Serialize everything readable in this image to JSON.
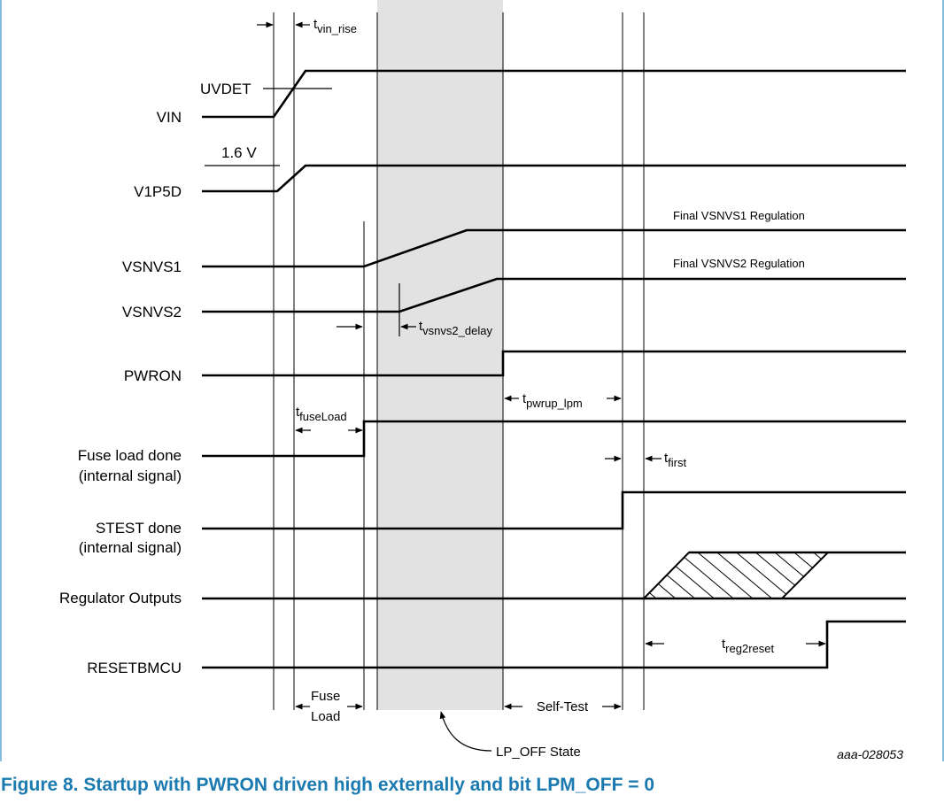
{
  "caption": "Figure 8.  Startup with PWRON driven high externally and bit LPM_OFF = 0",
  "figure_id": "aaa-028053",
  "signals": {
    "vin": "VIN",
    "v1p5d": "V1P5D",
    "vsnvs1": "VSNVS1",
    "vsnvs2": "VSNVS2",
    "pwron": "PWRON",
    "fuse_done": "Fuse load done",
    "fuse_done_sub": "(internal signal)",
    "stest_done": "STEST done",
    "stest_done_sub": "(internal signal)",
    "reg_outputs": "Regulator Outputs",
    "resetbmcu": "RESETBMCU"
  },
  "annotations": {
    "uvdet": "UVDET",
    "v16": "1.6 V",
    "vsnvs1_final": "Final VSNVS1 Regulation",
    "vsnvs2_final": "Final VSNVS2 Regulation",
    "fuse_load_1": "Fuse",
    "fuse_load_2": "Load",
    "self_test": "Self-Test",
    "lp_off_state": "LP_OFF State"
  },
  "timing": {
    "vin_rise_t": "t",
    "vin_rise_sub": "vin_rise",
    "vsnvs2_delay_t": "t",
    "vsnvs2_delay_sub": "vsnvs2_delay",
    "pwrup_lpm_t": "t",
    "pwrup_lpm_sub": "pwrup_lpm",
    "fuseload_t": "t",
    "fuseload_sub": "fuseLoad",
    "first_t": "t",
    "first_sub": "first",
    "reg2reset_t": "t",
    "reg2reset_sub": "reg2reset"
  },
  "colors": {
    "caption": "#1b7ab0",
    "frame": "#5ba7d0",
    "lp_off_shade": "#e2e2e2"
  }
}
